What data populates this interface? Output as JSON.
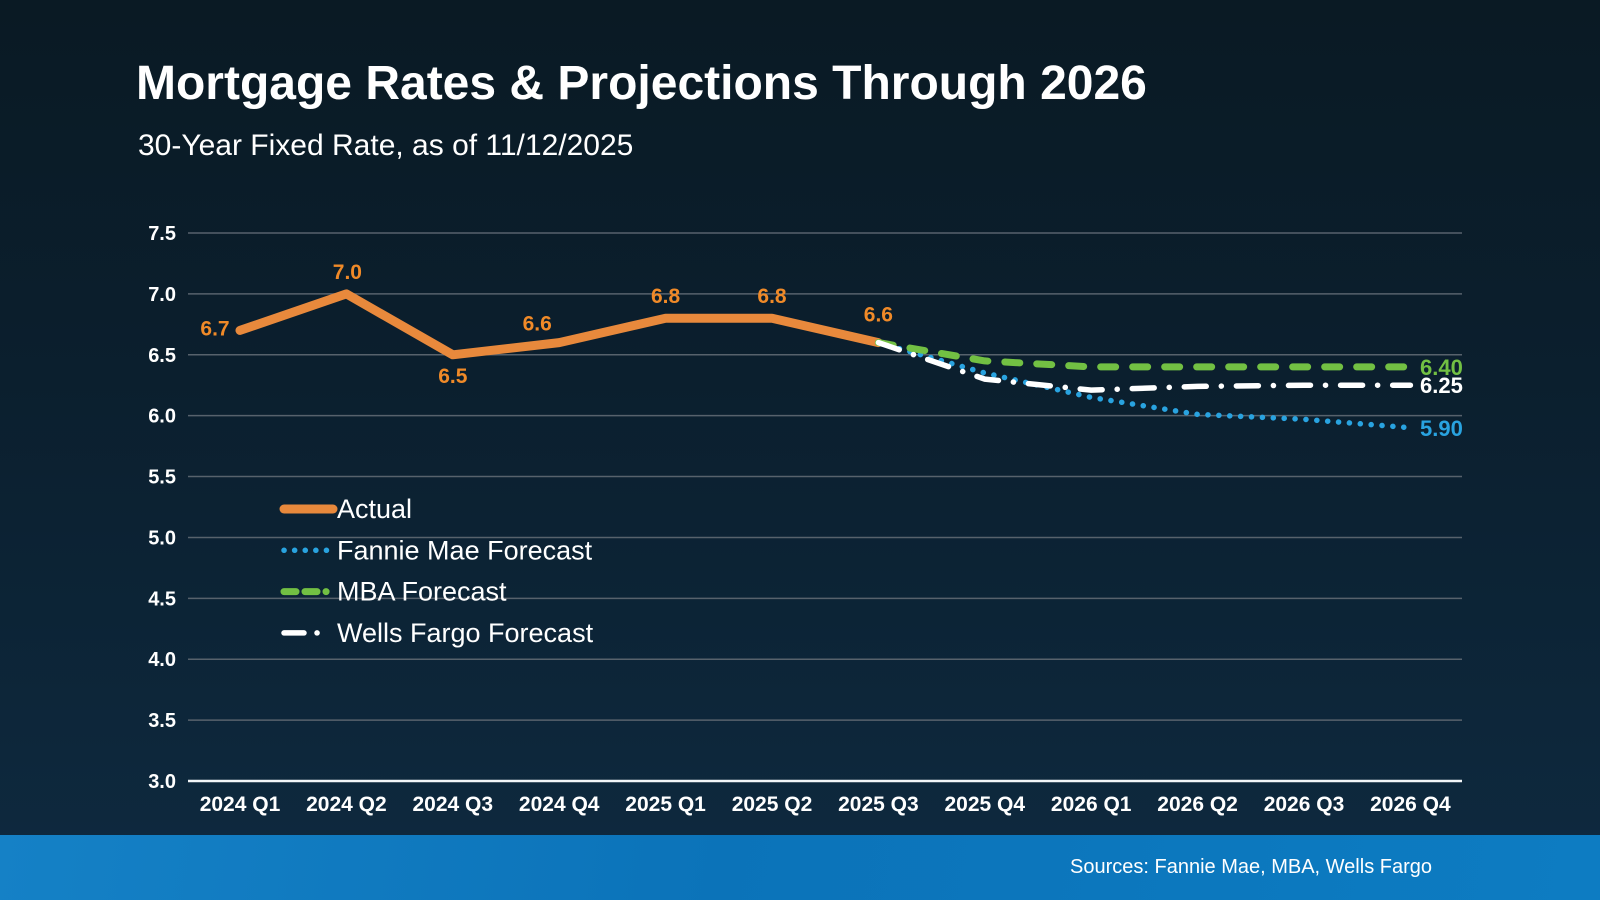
{
  "header": {
    "title": "Mortgage Rates & Projections Through 2026",
    "subtitle": "30-Year Fixed Rate, as of 11/12/2025"
  },
  "footer": {
    "sources": "Sources: Fannie Mae, MBA, Wells Fargo"
  },
  "colors": {
    "background_top": "#0a1a24",
    "background_bottom": "#0e2a40",
    "gridline": "#57626c",
    "axis_line": "#f2f5f7",
    "footer_bar": "#0d7cc2",
    "actual_orange": "#E8893C",
    "fannie_blue": "#29A3E0",
    "mba_green": "#72C043",
    "wells_white": "#FFFFFF"
  },
  "chart_data": {
    "type": "line",
    "title": "Mortgage Rates & Projections Through 2026",
    "subtitle": "30-Year Fixed Rate, as of 11/12/2025",
    "xlabel": "",
    "ylabel": "",
    "grid": true,
    "legend_position": "inside-left",
    "ylim": [
      3.0,
      7.5
    ],
    "y_ticks": [
      7.5,
      7.0,
      6.5,
      6.0,
      5.5,
      5.0,
      4.5,
      4.0,
      3.5,
      3.0
    ],
    "x_categories": [
      "2024 Q1",
      "2024 Q2",
      "2024 Q3",
      "2024 Q4",
      "2025 Q1",
      "2025 Q2",
      "2025 Q3",
      "2025 Q4",
      "2026 Q1",
      "2026 Q2",
      "2026 Q3",
      "2026 Q4"
    ],
    "series": [
      {
        "name": "Actual",
        "color": "#E8893C",
        "label_color": "#F08A28",
        "style": "solid",
        "start_index": 0,
        "values": [
          6.7,
          7.0,
          6.5,
          6.6,
          6.8,
          6.8,
          6.6
        ],
        "point_labels": [
          "6.7",
          "7.0",
          "6.5",
          "6.6",
          "6.8",
          "6.8",
          "6.6"
        ]
      },
      {
        "name": "Fannie Mae Forecast",
        "color": "#29A3E0",
        "style": "dotted",
        "start_index": 6,
        "values": [
          6.6,
          6.35,
          6.15,
          6.01,
          5.97,
          5.9
        ],
        "end_label": "5.90"
      },
      {
        "name": "MBA Forecast",
        "color": "#72C043",
        "style": "dashed",
        "start_index": 6,
        "values": [
          6.6,
          6.45,
          6.4,
          6.4,
          6.4,
          6.4
        ],
        "end_label": "6.40"
      },
      {
        "name": "Wells Fargo Forecast",
        "color": "#FFFFFF",
        "style": "dashdot",
        "start_index": 6,
        "values": [
          6.6,
          6.3,
          6.21,
          6.24,
          6.25,
          6.25
        ],
        "end_label": "6.25"
      }
    ]
  }
}
